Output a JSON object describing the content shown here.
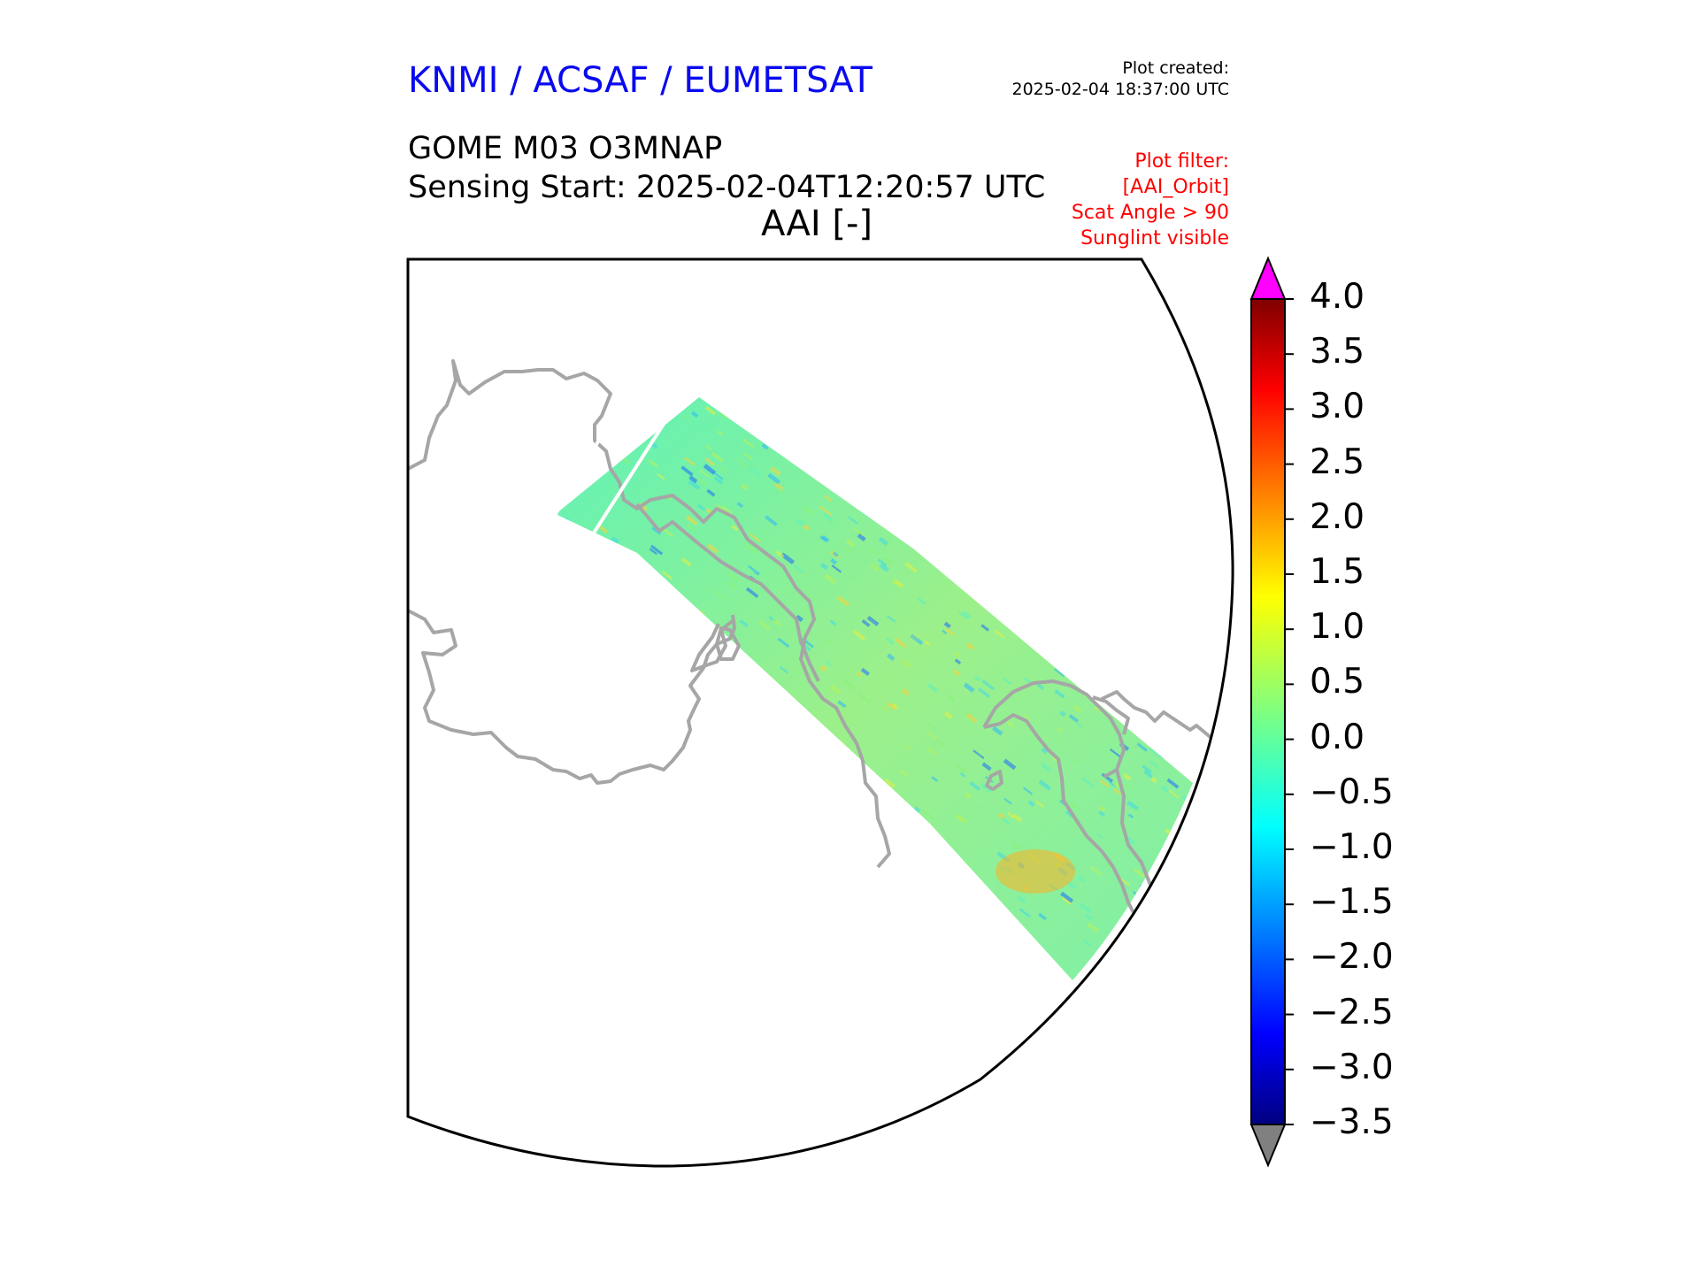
{
  "header": {
    "organization": "KNMI / ACSAF / EUMETSAT",
    "plot_created_label": "Plot created:",
    "plot_created_value": "2025-02-04 18:37:00 UTC",
    "product": "GOME M03 O3MNAP",
    "sensing_start": "Sensing Start: 2025-02-04T12:20:57 UTC",
    "variable_title": "AAI [-]"
  },
  "filter": {
    "label": "Plot filter:",
    "lines": [
      "[AAI_Orbit]",
      "Scat Angle > 90",
      "Sunglint visible"
    ]
  },
  "colorbar": {
    "min": -3.5,
    "max": 4.0,
    "ticks": [
      "4.0",
      "3.5",
      "3.0",
      "2.5",
      "2.0",
      "1.5",
      "1.0",
      "0.5",
      "0.0",
      "−0.5",
      "−1.0",
      "−1.5",
      "−2.0",
      "−2.5",
      "−3.0",
      "−3.5"
    ],
    "over_color": "#ff00ff",
    "under_color": "#808080",
    "colormap": "jet"
  },
  "colors": {
    "coastline": "#a6a6a6",
    "frame": "#000000"
  }
}
